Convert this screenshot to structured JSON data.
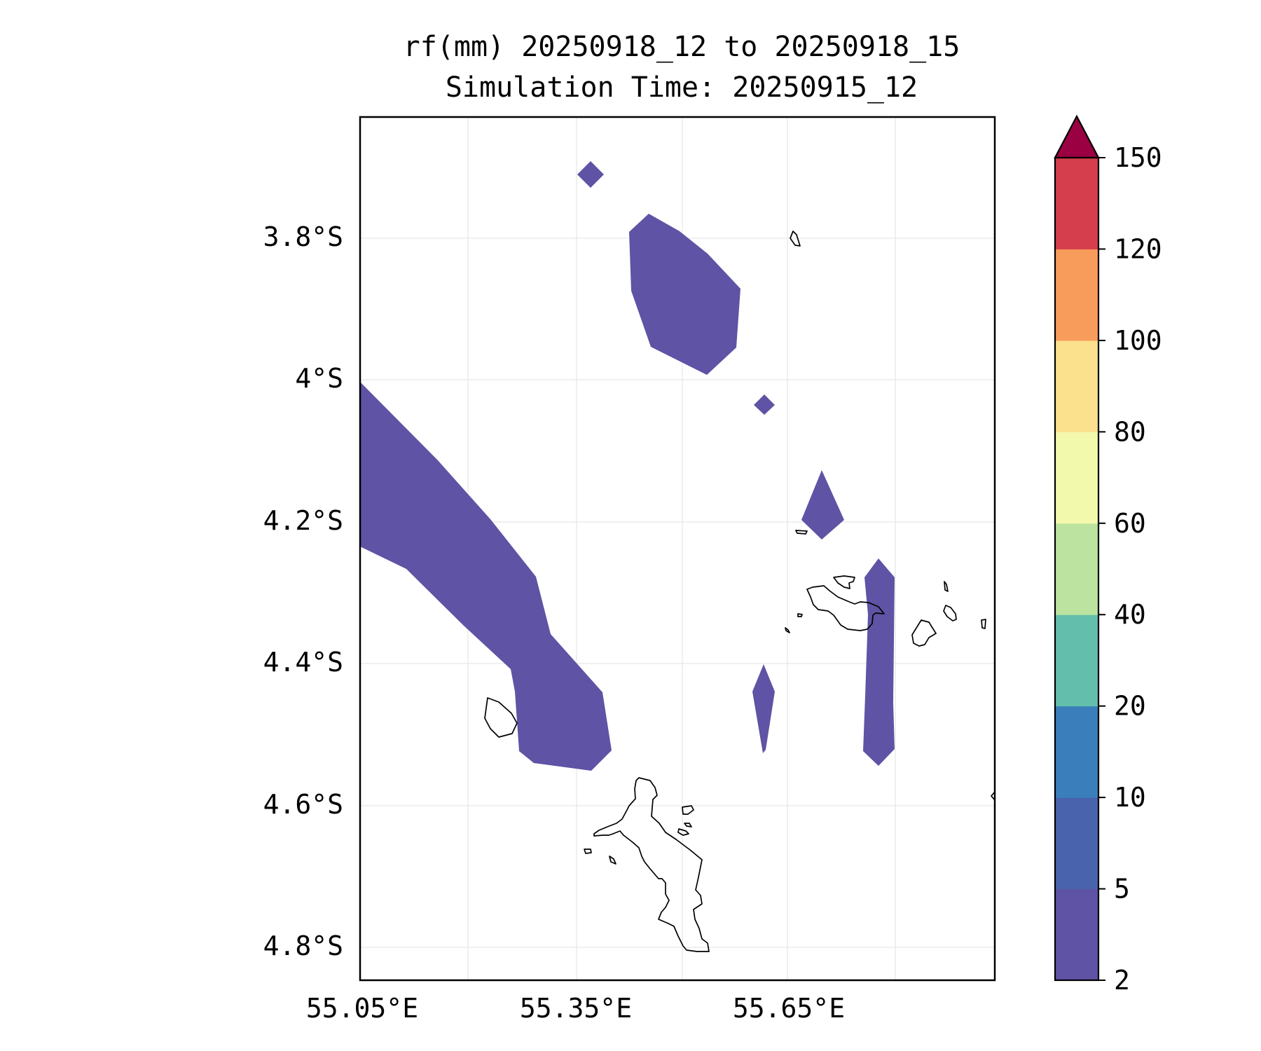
{
  "title": {
    "line1": "rf(mm) 20250918_12 to 20250918_15",
    "line2": "Simulation Time: 20250915_12"
  },
  "axes": {
    "lat_ticks": [
      "3.8°S",
      "4°S",
      "4.2°S",
      "4.4°S",
      "4.6°S",
      "4.8°S"
    ],
    "lon_ticks": [
      "55.05°E",
      "55.35°E",
      "55.65°E"
    ],
    "lat_range_south": [
      3.63,
      4.845
    ],
    "lon_range_east": [
      55.05,
      55.94
    ],
    "grid": true
  },
  "colorbar": {
    "levels": [
      "2",
      "5",
      "10",
      "20",
      "40",
      "60",
      "80",
      "100",
      "120",
      "150"
    ],
    "colors": [
      "#5e53a4",
      "#4a63ad",
      "#3a7fbb",
      "#63bfab",
      "#bce3a0",
      "#f3f9ac",
      "#fbe08d",
      "#f89c5b",
      "#d43e4d"
    ],
    "extend_color": "#9b0142",
    "extend": "max"
  },
  "rain_color": "#5e53a4",
  "coastline_color": "#000000"
}
